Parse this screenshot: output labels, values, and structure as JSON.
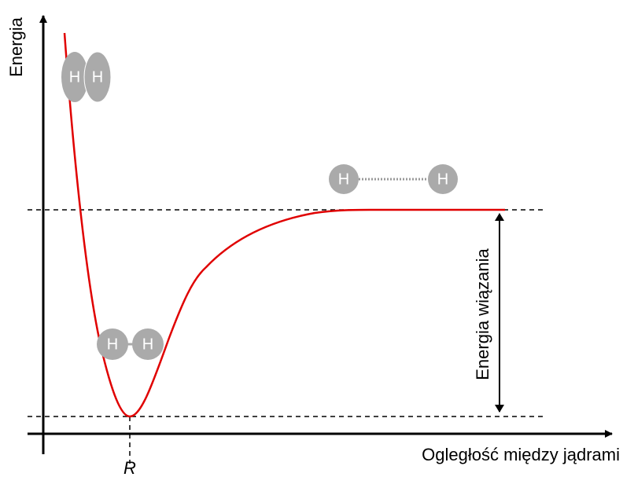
{
  "y_axis_label": "Energia",
  "x_axis_label": "Ogległość między jądrami",
  "equilibrium_label": "R",
  "bond_energy_label": "Energia wiązania",
  "molecules": [
    {
      "atoms": [
        "H",
        "H"
      ]
    },
    {
      "atoms": [
        "H",
        "H"
      ]
    },
    {
      "atoms": [
        "H",
        "H"
      ]
    }
  ]
}
